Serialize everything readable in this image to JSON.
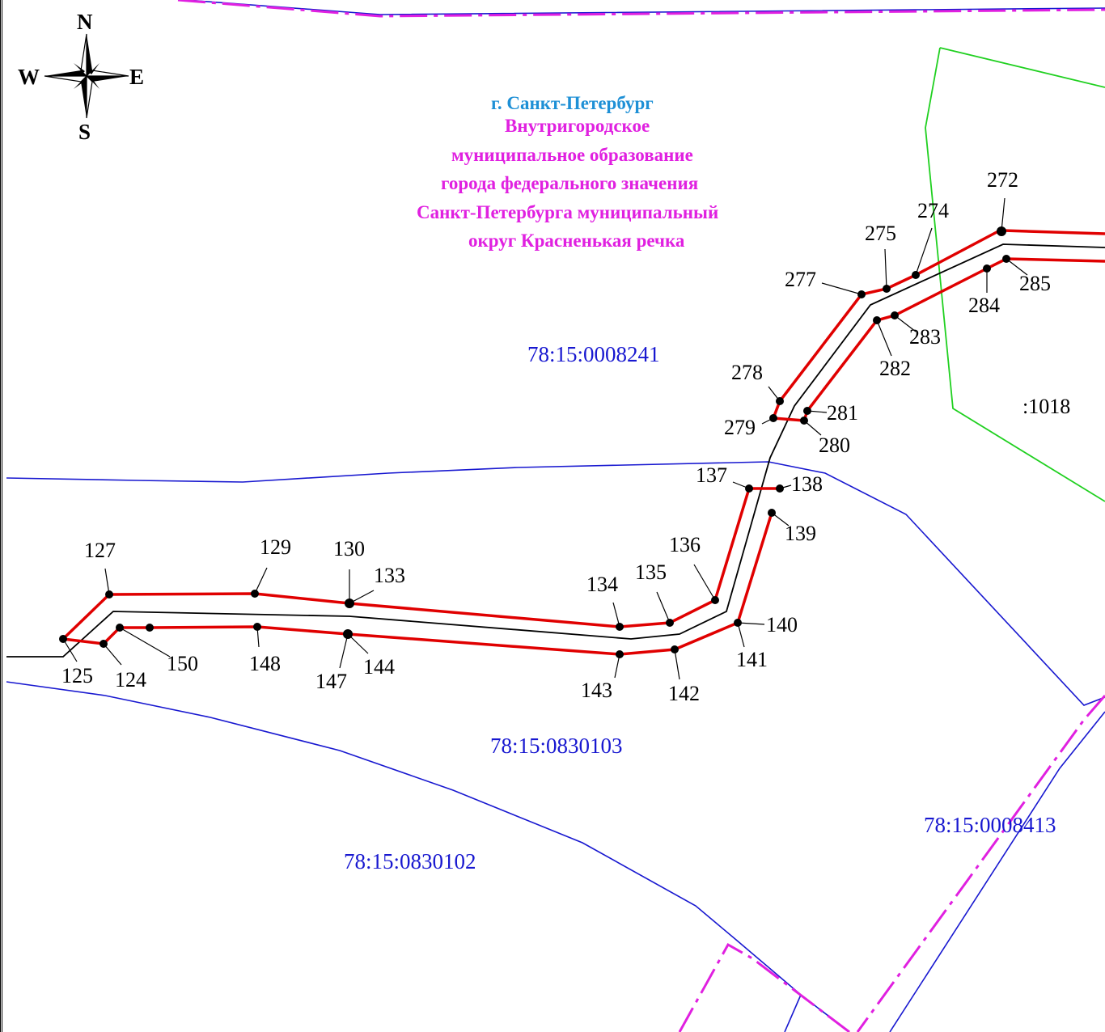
{
  "compass": {
    "north": "N",
    "south": "S",
    "east": "E",
    "west": "W"
  },
  "city_label": "г. Санкт-Петербург",
  "municipality_lines": [
    "Внутригородское",
    "муниципальное образование",
    "города федерального значения",
    "Санкт-Петербурга муниципальный",
    "округ Красненькая речка"
  ],
  "parcels": [
    {
      "id": "p1",
      "label": "78:15:0008241"
    },
    {
      "id": "p2",
      "label": "78:15:0830103"
    },
    {
      "id": "p3",
      "label": "78:15:0830102"
    },
    {
      "id": "p4",
      "label": "78:15:0008413"
    },
    {
      "id": "p5",
      "label": ":1018"
    }
  ],
  "point_labels": [
    "127",
    "129",
    "130",
    "133",
    "134",
    "135",
    "136",
    "137",
    "138",
    "139",
    "140",
    "141",
    "142",
    "143",
    "144",
    "147",
    "148",
    "150",
    "124",
    "125",
    "272",
    "274",
    "275",
    "277",
    "278",
    "279",
    "280",
    "281",
    "282",
    "283",
    "284",
    "285"
  ],
  "colors": {
    "boundary_red": "#e00000",
    "cadastral_blue": "#1818d0",
    "municipal_magenta": "#e020e0",
    "parcel_green": "#20d020",
    "centerline_black": "#000000"
  }
}
